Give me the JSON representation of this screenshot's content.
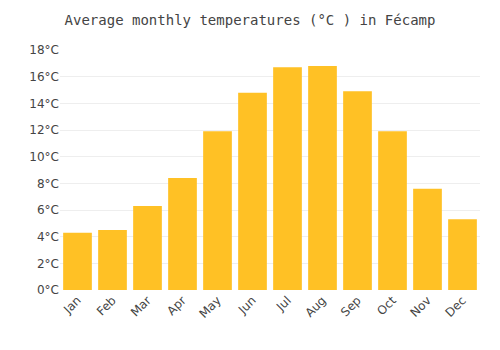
{
  "chart_data": {
    "type": "bar",
    "title": "Average monthly temperatures (°C ) in Fécamp",
    "categories": [
      "Jan",
      "Feb",
      "Mar",
      "Apr",
      "May",
      "Jun",
      "Jul",
      "Aug",
      "Sep",
      "Oct",
      "Nov",
      "Dec"
    ],
    "values": [
      4.3,
      4.5,
      6.3,
      8.4,
      11.9,
      14.8,
      16.7,
      16.8,
      14.9,
      11.9,
      7.6,
      5.3
    ],
    "color": "#FFC125",
    "ylim": [
      0,
      18
    ],
    "yticks": [
      {
        "value": 0,
        "label": "0°C"
      },
      {
        "value": 2,
        "label": "2°C"
      },
      {
        "value": 4,
        "label": "4°C"
      },
      {
        "value": 6,
        "label": "6°C"
      },
      {
        "value": 8,
        "label": "8°C"
      },
      {
        "value": 10,
        "label": "10°C"
      },
      {
        "value": 12,
        "label": "12°C"
      },
      {
        "value": 14,
        "label": "14°C"
      },
      {
        "value": 16,
        "label": "16°C"
      },
      {
        "value": 18,
        "label": "18°C"
      }
    ],
    "grid": true
  }
}
